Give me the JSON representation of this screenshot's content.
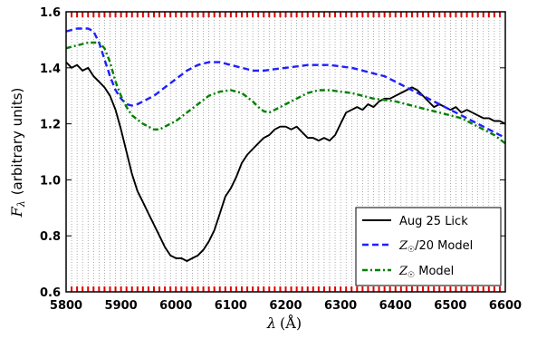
{
  "chart_data": {
    "type": "line",
    "xlabel_symbol": "λ",
    "xlabel_unit": "(Å)",
    "ylabel_symbol": "F",
    "ylabel_sub": "λ",
    "ylabel_text": "(arbitrary units)",
    "xlim": [
      5800,
      6600
    ],
    "ylim": [
      0.6,
      1.6
    ],
    "xticks": [
      5800,
      5900,
      6000,
      6100,
      6200,
      6300,
      6400,
      6500,
      6600
    ],
    "yticks": [
      0.6,
      0.8,
      1.0,
      1.2,
      1.4,
      1.6
    ],
    "ytick_labels": [
      "0.6",
      "0.8",
      "1.0",
      "1.2",
      "1.4",
      "1.6"
    ],
    "grid": "vertical dotted lines",
    "legend_position": "lower-right",
    "series": [
      {
        "name": "Aug 25 Lick",
        "color": "#000000",
        "style": "solid",
        "x": [
          5800,
          5810,
          5820,
          5830,
          5840,
          5850,
          5860,
          5870,
          5880,
          5890,
          5900,
          5910,
          5920,
          5930,
          5940,
          5950,
          5960,
          5970,
          5980,
          5990,
          6000,
          6010,
          6020,
          6030,
          6040,
          6050,
          6060,
          6070,
          6080,
          6090,
          6100,
          6110,
          6120,
          6130,
          6140,
          6150,
          6160,
          6170,
          6180,
          6190,
          6200,
          6210,
          6220,
          6230,
          6240,
          6250,
          6260,
          6270,
          6280,
          6290,
          6300,
          6310,
          6320,
          6330,
          6340,
          6350,
          6360,
          6370,
          6380,
          6390,
          6400,
          6410,
          6420,
          6430,
          6440,
          6450,
          6460,
          6470,
          6480,
          6490,
          6500,
          6510,
          6520,
          6530,
          6540,
          6550,
          6560,
          6570,
          6580,
          6590,
          6600
        ],
        "y": [
          1.42,
          1.4,
          1.41,
          1.39,
          1.4,
          1.37,
          1.35,
          1.33,
          1.3,
          1.25,
          1.18,
          1.1,
          1.02,
          0.96,
          0.92,
          0.88,
          0.84,
          0.8,
          0.76,
          0.73,
          0.72,
          0.72,
          0.71,
          0.72,
          0.73,
          0.75,
          0.78,
          0.82,
          0.88,
          0.94,
          0.97,
          1.01,
          1.06,
          1.09,
          1.11,
          1.13,
          1.15,
          1.16,
          1.18,
          1.19,
          1.19,
          1.18,
          1.19,
          1.17,
          1.15,
          1.15,
          1.14,
          1.15,
          1.14,
          1.16,
          1.2,
          1.24,
          1.25,
          1.26,
          1.25,
          1.27,
          1.26,
          1.28,
          1.29,
          1.29,
          1.3,
          1.31,
          1.32,
          1.33,
          1.32,
          1.3,
          1.28,
          1.26,
          1.27,
          1.26,
          1.25,
          1.26,
          1.24,
          1.25,
          1.24,
          1.23,
          1.22,
          1.22,
          1.21,
          1.21,
          1.2
        ]
      },
      {
        "name": "Z☉/20 Model",
        "name_symbol": "Z",
        "name_sub": "☉",
        "name_rest": "/20 Model",
        "color": "#1f1fff",
        "style": "dashed",
        "x": [
          5800,
          5820,
          5840,
          5850,
          5860,
          5870,
          5880,
          5890,
          5900,
          5910,
          5920,
          5930,
          5940,
          5960,
          5980,
          6000,
          6020,
          6040,
          6060,
          6080,
          6100,
          6120,
          6140,
          6160,
          6180,
          6200,
          6220,
          6240,
          6260,
          6280,
          6300,
          6320,
          6340,
          6360,
          6380,
          6400,
          6420,
          6440,
          6460,
          6480,
          6500,
          6520,
          6540,
          6560,
          6580,
          6600
        ],
        "y": [
          1.53,
          1.54,
          1.54,
          1.53,
          1.49,
          1.43,
          1.37,
          1.32,
          1.29,
          1.27,
          1.265,
          1.27,
          1.28,
          1.3,
          1.33,
          1.36,
          1.39,
          1.41,
          1.42,
          1.42,
          1.41,
          1.4,
          1.39,
          1.39,
          1.395,
          1.4,
          1.405,
          1.41,
          1.41,
          1.41,
          1.405,
          1.4,
          1.39,
          1.38,
          1.37,
          1.35,
          1.33,
          1.31,
          1.29,
          1.27,
          1.25,
          1.23,
          1.21,
          1.19,
          1.17,
          1.15
        ]
      },
      {
        "name": "Z☉ Model",
        "name_symbol": "Z",
        "name_sub": "☉",
        "name_rest": " Model",
        "color": "#008000",
        "style": "dash-dot",
        "x": [
          5800,
          5820,
          5840,
          5860,
          5870,
          5880,
          5890,
          5900,
          5910,
          5920,
          5940,
          5960,
          5970,
          5980,
          6000,
          6020,
          6040,
          6060,
          6080,
          6100,
          6120,
          6140,
          6150,
          6160,
          6170,
          6180,
          6200,
          6220,
          6240,
          6260,
          6280,
          6300,
          6320,
          6340,
          6360,
          6380,
          6400,
          6420,
          6440,
          6460,
          6480,
          6500,
          6520,
          6540,
          6560,
          6580,
          6600
        ],
        "y": [
          1.47,
          1.48,
          1.49,
          1.49,
          1.47,
          1.42,
          1.35,
          1.3,
          1.26,
          1.23,
          1.2,
          1.18,
          1.18,
          1.19,
          1.21,
          1.24,
          1.27,
          1.3,
          1.315,
          1.32,
          1.31,
          1.28,
          1.26,
          1.245,
          1.24,
          1.25,
          1.27,
          1.29,
          1.31,
          1.32,
          1.32,
          1.315,
          1.31,
          1.3,
          1.29,
          1.285,
          1.28,
          1.27,
          1.26,
          1.25,
          1.24,
          1.23,
          1.22,
          1.2,
          1.18,
          1.16,
          1.13
        ]
      }
    ]
  }
}
